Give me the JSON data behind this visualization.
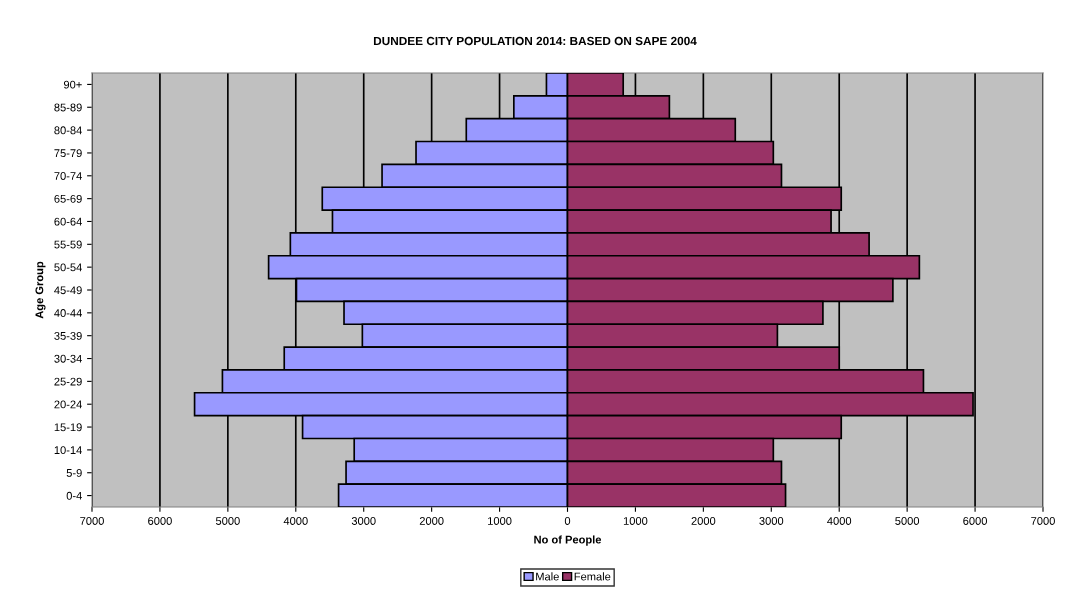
{
  "chart_data": {
    "type": "bar",
    "orientation": "horizontal",
    "title": "DUNDEE CITY POPULATION 2014: BASED ON SAPE 2004",
    "xlabel": "No of People",
    "ylabel": "Age Group",
    "categories": [
      "90+",
      "85-89",
      "80-84",
      "75-79",
      "70-74",
      "65-69",
      "60-64",
      "55-59",
      "50-54",
      "45-49",
      "40-44",
      "35-39",
      "30-34",
      "25-29",
      "20-24",
      "15-19",
      "10-14",
      "5-9",
      "0-4"
    ],
    "series": [
      {
        "name": "Male",
        "color": "#9999ff",
        "values": [
          -310,
          -790,
          -1490,
          -2230,
          -2730,
          -3610,
          -3460,
          -4080,
          -4400,
          -3990,
          -3290,
          -3020,
          -4170,
          -5080,
          -5490,
          -3900,
          -3140,
          -3260,
          -3370
        ]
      },
      {
        "name": "Female",
        "color": "#993366",
        "values": [
          820,
          1500,
          2470,
          3030,
          3150,
          4030,
          3880,
          4440,
          5180,
          4790,
          3760,
          3090,
          4000,
          5240,
          5970,
          4030,
          3030,
          3150,
          3210
        ]
      }
    ],
    "xlim": [
      -7000,
      7000
    ],
    "xticks": [
      {
        "value": -7000,
        "label": "7000"
      },
      {
        "value": -6000,
        "label": "6000"
      },
      {
        "value": -5000,
        "label": "5000"
      },
      {
        "value": -4000,
        "label": "4000"
      },
      {
        "value": -3000,
        "label": "3000"
      },
      {
        "value": -2000,
        "label": "2000"
      },
      {
        "value": -1000,
        "label": "1000"
      },
      0,
      1000,
      2000,
      3000,
      4000,
      5000,
      6000,
      7000
    ],
    "stacked": true,
    "grid": "x",
    "legend": "bottom"
  }
}
